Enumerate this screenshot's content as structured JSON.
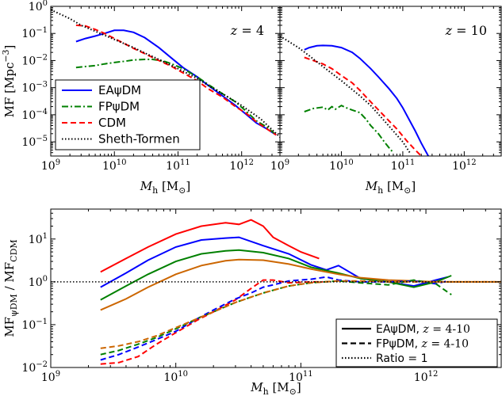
{
  "chart_data": [
    {
      "type": "line",
      "panel": "top-left",
      "annotation": "z = 4",
      "xlabel": "M_h [M_⊙]",
      "ylabel": "MF [Mpc^-3]",
      "xscale": "log",
      "yscale": "log",
      "xlim": [
        1000000000.0,
        4000000000000.0
      ],
      "ylim": [
        3e-06,
        1
      ],
      "xticks": [
        "10^9",
        "10^10",
        "10^11",
        "10^12"
      ],
      "yticks": [
        "10^-5",
        "10^-4",
        "10^-3",
        "10^-2",
        "10^-1",
        "10^0"
      ],
      "series": [
        {
          "name": "EAψDM",
          "color": "#0000ff",
          "dash": "solid",
          "x": [
            2500000000.0,
            3500000000.0,
            5000000000.0,
            7000000000.0,
            10000000000.0,
            14000000000.0,
            20000000000.0,
            30000000000.0,
            50000000000.0,
            80000000000.0,
            120000000000.0,
            200000000000.0,
            300000000000.0,
            500000000000.0,
            800000000000.0,
            1200000000000.0,
            1700000000000.0,
            2500000000000.0,
            3500000000000.0
          ],
          "y": [
            0.05,
            0.065,
            0.08,
            0.1,
            0.13,
            0.13,
            0.11,
            0.07,
            0.03,
            0.012,
            0.0055,
            0.0025,
            0.0012,
            0.0005,
            0.00022,
            0.0001,
            5e-05,
            3e-05,
            1.8e-05
          ]
        },
        {
          "name": "FPψDM",
          "color": "#008000",
          "dash": "dashdot",
          "x": [
            2500000000.0,
            3500000000.0,
            5000000000.0,
            7000000000.0,
            10000000000.0,
            15000000000.0,
            20000000000.0,
            30000000000.0,
            40000000000.0,
            60000000000.0,
            80000000000.0,
            120000000000.0,
            200000000000.0,
            300000000000.0,
            500000000000.0,
            800000000000.0,
            1200000000000.0,
            1700000000000.0,
            2500000000000.0,
            3500000000000.0
          ],
          "y": [
            0.0055,
            0.006,
            0.0065,
            0.0075,
            0.0085,
            0.0095,
            0.0105,
            0.011,
            0.011,
            0.0095,
            0.0075,
            0.005,
            0.0025,
            0.0013,
            0.0006,
            0.0003,
            0.00013,
            6e-05,
            3.5e-05,
            1.8e-05
          ]
        },
        {
          "name": "CDM",
          "color": "#ff0000",
          "dash": "dashed",
          "x": [
            2500000000.0,
            3500000000.0,
            5000000000.0,
            7000000000.0,
            10000000000.0,
            15000000000.0,
            20000000000.0,
            30000000000.0,
            50000000000.0,
            80000000000.0,
            120000000000.0,
            200000000000.0,
            300000000000.0,
            500000000000.0,
            800000000000.0,
            1200000000000.0,
            1700000000000.0,
            2500000000000.0,
            3500000000000.0
          ],
          "y": [
            0.2,
            0.19,
            0.14,
            0.1,
            0.065,
            0.04,
            0.028,
            0.018,
            0.01,
            0.006,
            0.0035,
            0.0018,
            0.0009,
            0.00045,
            0.0002,
            0.00011,
            5.5e-05,
            3e-05,
            1.8e-05
          ]
        },
        {
          "name": "Sheth-Tormen",
          "color": "#000000",
          "dash": "dotted",
          "x": [
            1000000000.0,
            2000000000.0,
            3000000000.0,
            5000000000.0,
            10000000000.0,
            20000000000.0,
            30000000000.0,
            50000000000.0,
            100000000000.0,
            200000000000.0,
            300000000000.0,
            500000000000.0,
            1000000000000.0,
            2000000000000.0,
            4000000000000.0
          ],
          "y": [
            0.75,
            0.35,
            0.2,
            0.12,
            0.06,
            0.03,
            0.019,
            0.011,
            0.005,
            0.0022,
            0.0012,
            0.0006,
            0.00022,
            7e-05,
            1.5e-05
          ]
        }
      ]
    },
    {
      "type": "line",
      "panel": "top-right",
      "annotation": "z = 10",
      "xlabel": "M_h [M_⊙]",
      "xscale": "log",
      "yscale": "log",
      "xlim": [
        1000000000.0,
        4000000000000.0
      ],
      "ylim": [
        3e-06,
        1
      ],
      "xticks": [
        "10^9",
        "10^10",
        "10^11",
        "10^12"
      ],
      "series": [
        {
          "name": "EAψDM",
          "color": "#0000ff",
          "dash": "solid",
          "x": [
            2500000000.0,
            3000000000.0,
            4000000000.0,
            5000000000.0,
            7000000000.0,
            10000000000.0,
            15000000000.0,
            20000000000.0,
            30000000000.0,
            40000000000.0,
            60000000000.0,
            80000000000.0,
            100000000000.0,
            130000000000.0,
            160000000000.0,
            200000000000.0,
            260000000000.0
          ],
          "y": [
            0.025,
            0.03,
            0.035,
            0.036,
            0.035,
            0.03,
            0.02,
            0.012,
            0.005,
            0.0025,
            0.0009,
            0.0004,
            0.00018,
            6e-05,
            2.5e-05,
            9e-06,
            3e-06
          ]
        },
        {
          "name": "FPψDM",
          "color": "#008000",
          "dash": "dashdot",
          "x": [
            2500000000.0,
            3500000000.0,
            5000000000.0,
            6000000000.0,
            7000000000.0,
            8000000000.0,
            10000000000.0,
            12000000000.0,
            15000000000.0,
            20000000000.0,
            25000000000.0,
            30000000000.0,
            40000000000.0,
            50000000000.0,
            60000000000.0,
            70000000000.0
          ],
          "y": [
            0.00013,
            0.00017,
            0.00019,
            0.00015,
            0.0002,
            0.00016,
            0.00022,
            0.00018,
            0.00015,
            0.00012,
            7e-05,
            4e-05,
            2e-05,
            1e-05,
            6e-06,
            4e-06
          ]
        },
        {
          "name": "CDM",
          "color": "#ff0000",
          "dash": "dashed",
          "x": [
            2500000000.0,
            3500000000.0,
            5000000000.0,
            7000000000.0,
            10000000000.0,
            15000000000.0,
            20000000000.0,
            30000000000.0,
            50000000000.0,
            80000000000.0,
            120000000000.0,
            160000000000.0,
            200000000000.0
          ],
          "y": [
            0.013,
            0.01,
            0.0075,
            0.005,
            0.0028,
            0.0015,
            0.0008,
            0.0003,
            9e-05,
            3e-05,
            1e-05,
            5e-06,
            3e-06
          ]
        },
        {
          "name": "Sheth-Tormen",
          "color": "#000000",
          "dash": "dotted",
          "x": [
            1000000000.0,
            2000000000.0,
            3000000000.0,
            5000000000.0,
            10000000000.0,
            20000000000.0,
            30000000000.0,
            50000000000.0,
            100000000000.0,
            130000000000.0
          ],
          "y": [
            0.08,
            0.03,
            0.015,
            0.006,
            0.0018,
            0.0005,
            0.00022,
            6e-05,
            1e-05,
            4e-06
          ]
        }
      ],
      "legend": {
        "placement": "lower-left of top-left panel",
        "entries": [
          {
            "label": "EAψDM",
            "color": "#0000ff",
            "dash": "solid"
          },
          {
            "label": "FPψDM",
            "color": "#008000",
            "dash": "dashdot"
          },
          {
            "label": "CDM",
            "color": "#ff0000",
            "dash": "dashed"
          },
          {
            "label": "Sheth-Tormen",
            "color": "#000000",
            "dash": "dotted"
          }
        ]
      }
    },
    {
      "type": "line",
      "panel": "bottom",
      "xlabel": "M_h [M_⊙]",
      "ylabel": "MF_ψDM / MF_CDM",
      "xscale": "log",
      "yscale": "log",
      "xlim": [
        1000000000.0,
        4000000000000.0
      ],
      "ylim": [
        0.01,
        50
      ],
      "xticks": [
        "10^9",
        "10^10",
        "10^11",
        "10^12"
      ],
      "yticks": [
        "10^-2",
        "10^-1",
        "10^0",
        "10^1"
      ],
      "reference_line": {
        "y": 1,
        "label": "Ratio = 1"
      },
      "series": [
        {
          "group": "EAψDM",
          "color": "#ff0000",
          "dash": "solid",
          "x": [
            2500000000.0,
            4000000000.0,
            6000000000.0,
            10000000000.0,
            16000000000.0,
            25000000000.0,
            32000000000.0,
            40000000000.0,
            50000000000.0,
            60000000000.0,
            80000000000.0,
            100000000000.0,
            140000000000.0
          ],
          "y": [
            1.7,
            3.5,
            6.5,
            13,
            20,
            24,
            22,
            28,
            20,
            11,
            7,
            5,
            3.5
          ]
        },
        {
          "group": "EAψDM",
          "color": "#0000ff",
          "dash": "solid",
          "x": [
            2500000000.0,
            4000000000.0,
            6000000000.0,
            10000000000.0,
            16000000000.0,
            25000000000.0,
            32000000000.0,
            50000000000.0,
            80000000000.0,
            120000000000.0,
            160000000000.0,
            200000000000.0,
            300000000000.0,
            500000000000.0,
            800000000000.0,
            1200000000000.0,
            1500000000000.0
          ],
          "y": [
            0.75,
            1.6,
            3.2,
            6.5,
            9.5,
            10.5,
            11,
            7,
            4.5,
            2.5,
            1.9,
            2.4,
            1.2,
            1.0,
            0.8,
            1.1,
            1.3
          ]
        },
        {
          "group": "EAψDM",
          "color": "#008000",
          "dash": "solid",
          "x": [
            2500000000.0,
            4000000000.0,
            6000000000.0,
            10000000000.0,
            16000000000.0,
            25000000000.0,
            32000000000.0,
            50000000000.0,
            80000000000.0,
            120000000000.0,
            200000000000.0,
            300000000000.0,
            500000000000.0,
            800000000000.0,
            1200000000000.0,
            1600000000000.0
          ],
          "y": [
            0.38,
            0.8,
            1.5,
            3,
            4.5,
            5.3,
            5.5,
            4.8,
            3.5,
            2.2,
            1.6,
            1.2,
            1.0,
            0.75,
            1.0,
            1.4
          ]
        },
        {
          "group": "EAψDM",
          "color": "#cc6600",
          "dash": "solid",
          "x": [
            2500000000.0,
            4000000000.0,
            6000000000.0,
            10000000000.0,
            16000000000.0,
            25000000000.0,
            32000000000.0,
            50000000000.0,
            80000000000.0,
            120000000000.0,
            200000000000.0,
            300000000000.0,
            500000000000.0,
            800000000000.0,
            1200000000000.0,
            2000000000000.0,
            3000000000000.0,
            4000000000000.0
          ],
          "y": [
            0.22,
            0.4,
            0.75,
            1.5,
            2.4,
            3.1,
            3.3,
            3.2,
            2.6,
            2.0,
            1.5,
            1.25,
            1.1,
            1.05,
            1.0,
            1.0,
            1.0,
            1.0
          ]
        },
        {
          "group": "FPψDM",
          "color": "#ff0000",
          "dash": "dashed",
          "x": [
            2500000000.0,
            3500000000.0,
            5000000000.0,
            7000000000.0,
            10000000000.0,
            15000000000.0,
            20000000000.0,
            30000000000.0,
            40000000000.0,
            50000000000.0,
            60000000000.0,
            80000000000.0,
            120000000000.0,
            150000000000.0
          ],
          "y": [
            0.012,
            0.013,
            0.018,
            0.035,
            0.065,
            0.13,
            0.2,
            0.38,
            0.7,
            1.1,
            1.1,
            0.95,
            1.0,
            1.0
          ]
        },
        {
          "group": "FPψDM",
          "color": "#0000ff",
          "dash": "dashed",
          "x": [
            2500000000.0,
            3500000000.0,
            5000000000.0,
            7000000000.0,
            10000000000.0,
            15000000000.0,
            20000000000.0,
            30000000000.0,
            40000000000.0,
            50000000000.0,
            60000000000.0,
            80000000000.0,
            120000000000.0,
            160000000000.0,
            200000000000.0,
            300000000000.0,
            500000000000.0,
            800000000000.0,
            1200000000000.0,
            1500000000000.0
          ],
          "y": [
            0.015,
            0.02,
            0.03,
            0.045,
            0.07,
            0.14,
            0.22,
            0.4,
            0.55,
            0.75,
            0.85,
            1.05,
            1.15,
            1.3,
            1.1,
            1.0,
            1.0,
            1.05,
            0.9,
            1.05
          ]
        },
        {
          "group": "FPψDM",
          "color": "#008000",
          "dash": "dashed",
          "x": [
            2500000000.0,
            3500000000.0,
            5000000000.0,
            7000000000.0,
            10000000000.0,
            15000000000.0,
            20000000000.0,
            30000000000.0,
            50000000000.0,
            80000000000.0,
            120000000000.0,
            200000000000.0,
            300000000000.0,
            500000000000.0,
            800000000000.0,
            1200000000000.0,
            1600000000000.0
          ],
          "y": [
            0.02,
            0.025,
            0.035,
            0.05,
            0.08,
            0.14,
            0.2,
            0.33,
            0.55,
            0.8,
            0.95,
            1.05,
            0.95,
            0.85,
            1.1,
            0.9,
            0.5
          ]
        },
        {
          "group": "FPψDM",
          "color": "#cc6600",
          "dash": "dashed",
          "x": [
            2500000000.0,
            3500000000.0,
            5000000000.0,
            7000000000.0,
            10000000000.0,
            15000000000.0,
            20000000000.0,
            30000000000.0,
            50000000000.0,
            80000000000.0,
            120000000000.0,
            200000000000.0,
            300000000000.0,
            500000000000.0,
            800000000000.0,
            1200000000000.0,
            2000000000000.0,
            3000000000000.0,
            4000000000000.0
          ],
          "y": [
            0.028,
            0.032,
            0.04,
            0.055,
            0.085,
            0.14,
            0.2,
            0.33,
            0.55,
            0.8,
            0.95,
            1.05,
            1.05,
            1.0,
            1.0,
            1.0,
            1.0,
            1.0,
            1.0
          ]
        }
      ],
      "legend": {
        "placement": "lower-right",
        "entries": [
          {
            "label": "EAψDM, z = 4-10",
            "color": "#000000",
            "dash": "solid"
          },
          {
            "label": "FPψDM, z = 4-10",
            "color": "#000000",
            "dash": "dashed"
          },
          {
            "label": "Ratio = 1",
            "color": "#000000",
            "dash": "dotted"
          }
        ]
      }
    }
  ]
}
